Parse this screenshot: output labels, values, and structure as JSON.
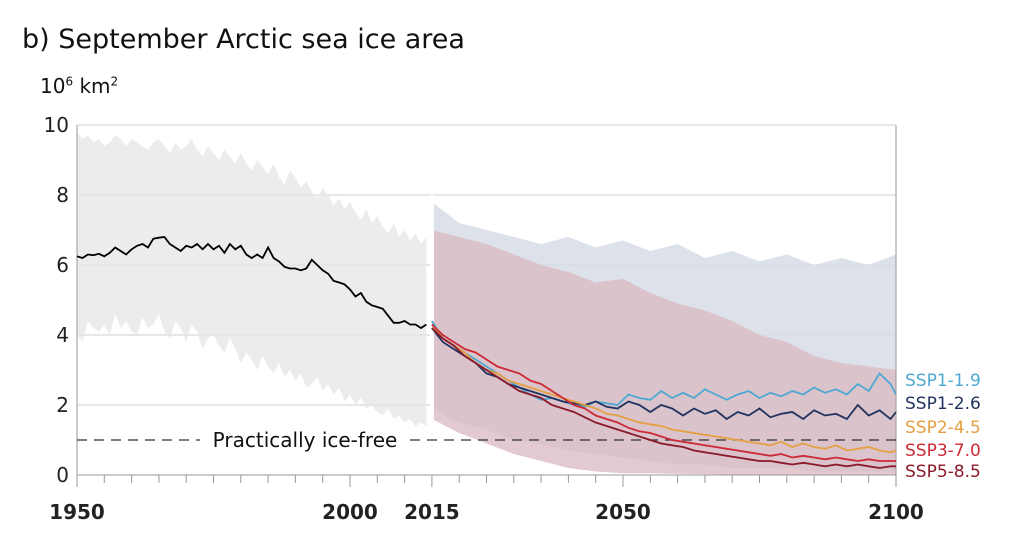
{
  "chart_data": {
    "type": "line",
    "title": "b) September Arctic sea ice area",
    "ylabel_base": "10",
    "ylabel_exp": "6",
    "ylabel_unit": "km",
    "ylabel_unit_exp": "2",
    "ylim": [
      0,
      10
    ],
    "xlim": [
      1950,
      2100
    ],
    "yticks": [
      0,
      2,
      4,
      6,
      8,
      10
    ],
    "xticks_labeled": [
      1950,
      2000,
      2015,
      2050,
      2100
    ],
    "grid": true,
    "threshold": {
      "value": 1,
      "label": "Practically ice-free"
    },
    "historical": {
      "color": "#000000",
      "band_color": "#e6e6e6",
      "x": [
        1950,
        1951,
        1952,
        1953,
        1954,
        1955,
        1956,
        1957,
        1958,
        1959,
        1960,
        1961,
        1962,
        1963,
        1964,
        1965,
        1966,
        1967,
        1968,
        1969,
        1970,
        1971,
        1972,
        1973,
        1974,
        1975,
        1976,
        1977,
        1978,
        1979,
        1980,
        1981,
        1982,
        1983,
        1984,
        1985,
        1986,
        1987,
        1988,
        1989,
        1990,
        1991,
        1992,
        1993,
        1994,
        1995,
        1996,
        1997,
        1998,
        1999,
        2000,
        2001,
        2002,
        2003,
        2004,
        2005,
        2006,
        2007,
        2008,
        2009,
        2010,
        2011,
        2012,
        2013,
        2014
      ],
      "y": [
        6.25,
        6.2,
        6.3,
        6.28,
        6.32,
        6.25,
        6.35,
        6.5,
        6.4,
        6.3,
        6.45,
        6.55,
        6.6,
        6.5,
        6.75,
        6.78,
        6.8,
        6.6,
        6.5,
        6.4,
        6.55,
        6.5,
        6.6,
        6.45,
        6.6,
        6.45,
        6.55,
        6.35,
        6.6,
        6.45,
        6.55,
        6.3,
        6.2,
        6.3,
        6.2,
        6.5,
        6.2,
        6.1,
        5.95,
        5.9,
        5.9,
        5.85,
        5.9,
        6.15,
        6.0,
        5.85,
        5.75,
        5.55,
        5.5,
        5.45,
        5.3,
        5.1,
        5.2,
        4.95,
        4.85,
        4.8,
        4.75,
        4.55,
        4.35,
        4.35,
        4.4,
        4.3,
        4.3,
        4.2,
        4.3
      ],
      "band_upper": [
        9.8,
        9.6,
        9.7,
        9.5,
        9.6,
        9.4,
        9.5,
        9.7,
        9.6,
        9.4,
        9.6,
        9.5,
        9.4,
        9.3,
        9.5,
        9.6,
        9.4,
        9.2,
        9.5,
        9.3,
        9.4,
        9.6,
        9.3,
        9.1,
        9.4,
        9.2,
        9.0,
        9.3,
        9.1,
        8.9,
        9.2,
        8.9,
        8.7,
        9.0,
        8.8,
        8.6,
        8.9,
        8.5,
        8.3,
        8.7,
        8.5,
        8.2,
        8.4,
        8.1,
        7.9,
        8.2,
        8.0,
        7.7,
        7.9,
        7.6,
        7.8,
        7.5,
        7.3,
        7.6,
        7.2,
        7.4,
        7.1,
        6.9,
        7.2,
        6.8,
        7.0,
        6.7,
        6.9,
        6.6,
        6.8
      ],
      "band_lower": [
        4.0,
        3.8,
        4.4,
        4.2,
        4.1,
        4.3,
        4.0,
        4.6,
        4.2,
        4.4,
        4.1,
        4.0,
        4.5,
        4.2,
        4.3,
        4.6,
        4.1,
        3.9,
        4.4,
        4.2,
        3.8,
        4.3,
        4.1,
        3.6,
        3.9,
        4.0,
        3.7,
        3.5,
        3.9,
        3.6,
        3.2,
        3.5,
        3.3,
        3.0,
        3.4,
        3.1,
        2.9,
        3.2,
        2.8,
        3.0,
        2.7,
        2.9,
        2.5,
        2.6,
        2.8,
        2.4,
        2.6,
        2.3,
        2.5,
        2.1,
        2.3,
        2.0,
        2.2,
        1.9,
        2.0,
        1.8,
        1.7,
        1.9,
        1.6,
        1.7,
        1.5,
        1.6,
        1.4,
        1.5,
        1.4
      ]
    },
    "scenario_band_high": {
      "color": "#d6dce6",
      "x": [
        2015,
        2020,
        2025,
        2030,
        2035,
        2040,
        2045,
        2050,
        2055,
        2060,
        2065,
        2070,
        2075,
        2080,
        2085,
        2090,
        2095,
        2100
      ],
      "upper": [
        7.8,
        7.2,
        7.0,
        6.8,
        6.6,
        6.8,
        6.5,
        6.7,
        6.4,
        6.6,
        6.2,
        6.4,
        6.1,
        6.3,
        6.0,
        6.2,
        6.0,
        6.3
      ],
      "lower": [
        1.9,
        1.5,
        1.3,
        1.0,
        0.9,
        0.7,
        0.6,
        0.5,
        0.4,
        0.3,
        0.3,
        0.2,
        0.2,
        0.2,
        0.1,
        0.1,
        0.1,
        0.1
      ]
    },
    "scenario_band_low": {
      "color": "#d9b8c0",
      "x": [
        2015,
        2020,
        2025,
        2030,
        2035,
        2040,
        2045,
        2050,
        2055,
        2060,
        2065,
        2070,
        2075,
        2080,
        2085,
        2090,
        2095,
        2100
      ],
      "upper": [
        7.0,
        6.8,
        6.6,
        6.3,
        6.0,
        5.8,
        5.5,
        5.6,
        5.2,
        4.9,
        4.7,
        4.4,
        4.0,
        3.8,
        3.4,
        3.2,
        3.1,
        3.0
      ],
      "lower": [
        1.6,
        1.2,
        0.9,
        0.6,
        0.4,
        0.2,
        0.1,
        0.05,
        0.05,
        0.03,
        0.02,
        0.01,
        0.01,
        0.0,
        0.0,
        0.0,
        0.0,
        0.0
      ]
    },
    "series": [
      {
        "name": "SSP1-1.9",
        "color": "#4fa8d1",
        "x": [
          2015,
          2017,
          2019,
          2021,
          2023,
          2025,
          2027,
          2029,
          2031,
          2033,
          2035,
          2037,
          2039,
          2041,
          2043,
          2045,
          2047,
          2049,
          2051,
          2053,
          2055,
          2057,
          2059,
          2061,
          2063,
          2065,
          2067,
          2069,
          2071,
          2073,
          2075,
          2077,
          2079,
          2081,
          2083,
          2085,
          2087,
          2089,
          2091,
          2093,
          2095,
          2097,
          2099,
          2100
        ],
        "values": [
          4.4,
          3.9,
          3.7,
          3.5,
          3.3,
          3.1,
          2.9,
          2.7,
          2.5,
          2.3,
          2.15,
          2.2,
          2.1,
          2.0,
          1.95,
          2.1,
          2.05,
          2.0,
          2.3,
          2.2,
          2.15,
          2.4,
          2.2,
          2.35,
          2.2,
          2.45,
          2.3,
          2.15,
          2.3,
          2.4,
          2.2,
          2.35,
          2.25,
          2.4,
          2.3,
          2.5,
          2.35,
          2.45,
          2.3,
          2.6,
          2.4,
          2.9,
          2.6,
          2.3
        ]
      },
      {
        "name": "SSP1-2.6",
        "color": "#22335f",
        "x": [
          2015,
          2017,
          2019,
          2021,
          2023,
          2025,
          2027,
          2029,
          2031,
          2033,
          2035,
          2037,
          2039,
          2041,
          2043,
          2045,
          2047,
          2049,
          2051,
          2053,
          2055,
          2057,
          2059,
          2061,
          2063,
          2065,
          2067,
          2069,
          2071,
          2073,
          2075,
          2077,
          2079,
          2081,
          2083,
          2085,
          2087,
          2089,
          2091,
          2093,
          2095,
          2097,
          2099,
          2100
        ],
        "values": [
          4.2,
          3.8,
          3.6,
          3.4,
          3.2,
          2.9,
          2.8,
          2.6,
          2.5,
          2.4,
          2.3,
          2.2,
          2.1,
          2.05,
          2.0,
          2.1,
          1.95,
          1.9,
          2.1,
          2.0,
          1.8,
          2.0,
          1.9,
          1.7,
          1.9,
          1.75,
          1.85,
          1.6,
          1.8,
          1.7,
          1.9,
          1.65,
          1.75,
          1.8,
          1.6,
          1.85,
          1.7,
          1.75,
          1.6,
          2.0,
          1.7,
          1.85,
          1.6,
          1.8
        ]
      },
      {
        "name": "SSP2-4.5",
        "color": "#e5a044",
        "x": [
          2015,
          2017,
          2019,
          2021,
          2023,
          2025,
          2027,
          2029,
          2031,
          2033,
          2035,
          2037,
          2039,
          2041,
          2043,
          2045,
          2047,
          2049,
          2051,
          2053,
          2055,
          2057,
          2059,
          2061,
          2063,
          2065,
          2067,
          2069,
          2071,
          2073,
          2075,
          2077,
          2079,
          2081,
          2083,
          2085,
          2087,
          2089,
          2091,
          2093,
          2095,
          2097,
          2099,
          2100
        ],
        "values": [
          4.3,
          3.9,
          3.7,
          3.5,
          3.2,
          3.0,
          2.9,
          2.7,
          2.6,
          2.5,
          2.4,
          2.3,
          2.2,
          2.1,
          2.0,
          1.9,
          1.75,
          1.7,
          1.6,
          1.5,
          1.45,
          1.4,
          1.3,
          1.25,
          1.2,
          1.15,
          1.1,
          1.05,
          1.0,
          0.95,
          0.9,
          0.85,
          0.95,
          0.8,
          0.9,
          0.8,
          0.75,
          0.85,
          0.7,
          0.75,
          0.8,
          0.7,
          0.65,
          0.7
        ]
      },
      {
        "name": "SSP3-7.0",
        "color": "#cc2a36",
        "x": [
          2015,
          2017,
          2019,
          2021,
          2023,
          2025,
          2027,
          2029,
          2031,
          2033,
          2035,
          2037,
          2039,
          2041,
          2043,
          2045,
          2047,
          2049,
          2051,
          2053,
          2055,
          2057,
          2059,
          2061,
          2063,
          2065,
          2067,
          2069,
          2071,
          2073,
          2075,
          2077,
          2079,
          2081,
          2083,
          2085,
          2087,
          2089,
          2091,
          2093,
          2095,
          2097,
          2099,
          2100
        ],
        "values": [
          4.3,
          4.0,
          3.8,
          3.6,
          3.5,
          3.3,
          3.1,
          3.0,
          2.9,
          2.7,
          2.6,
          2.4,
          2.2,
          2.0,
          1.9,
          1.7,
          1.6,
          1.5,
          1.35,
          1.25,
          1.2,
          1.1,
          1.0,
          0.95,
          0.9,
          0.85,
          0.8,
          0.75,
          0.7,
          0.65,
          0.6,
          0.55,
          0.6,
          0.5,
          0.55,
          0.5,
          0.45,
          0.5,
          0.45,
          0.4,
          0.45,
          0.4,
          0.4,
          0.4
        ]
      },
      {
        "name": "SSP5-8.5",
        "color": "#8b1a2a",
        "x": [
          2015,
          2017,
          2019,
          2021,
          2023,
          2025,
          2027,
          2029,
          2031,
          2033,
          2035,
          2037,
          2039,
          2041,
          2043,
          2045,
          2047,
          2049,
          2051,
          2053,
          2055,
          2057,
          2059,
          2061,
          2063,
          2065,
          2067,
          2069,
          2071,
          2073,
          2075,
          2077,
          2079,
          2081,
          2083,
          2085,
          2087,
          2089,
          2091,
          2093,
          2095,
          2097,
          2099,
          2100
        ],
        "values": [
          4.2,
          3.9,
          3.7,
          3.4,
          3.2,
          3.0,
          2.8,
          2.6,
          2.4,
          2.3,
          2.2,
          2.0,
          1.9,
          1.8,
          1.65,
          1.5,
          1.4,
          1.3,
          1.2,
          1.1,
          1.0,
          0.9,
          0.85,
          0.8,
          0.7,
          0.65,
          0.6,
          0.55,
          0.5,
          0.45,
          0.4,
          0.4,
          0.35,
          0.3,
          0.35,
          0.3,
          0.25,
          0.3,
          0.25,
          0.3,
          0.25,
          0.2,
          0.25,
          0.25
        ]
      }
    ]
  }
}
